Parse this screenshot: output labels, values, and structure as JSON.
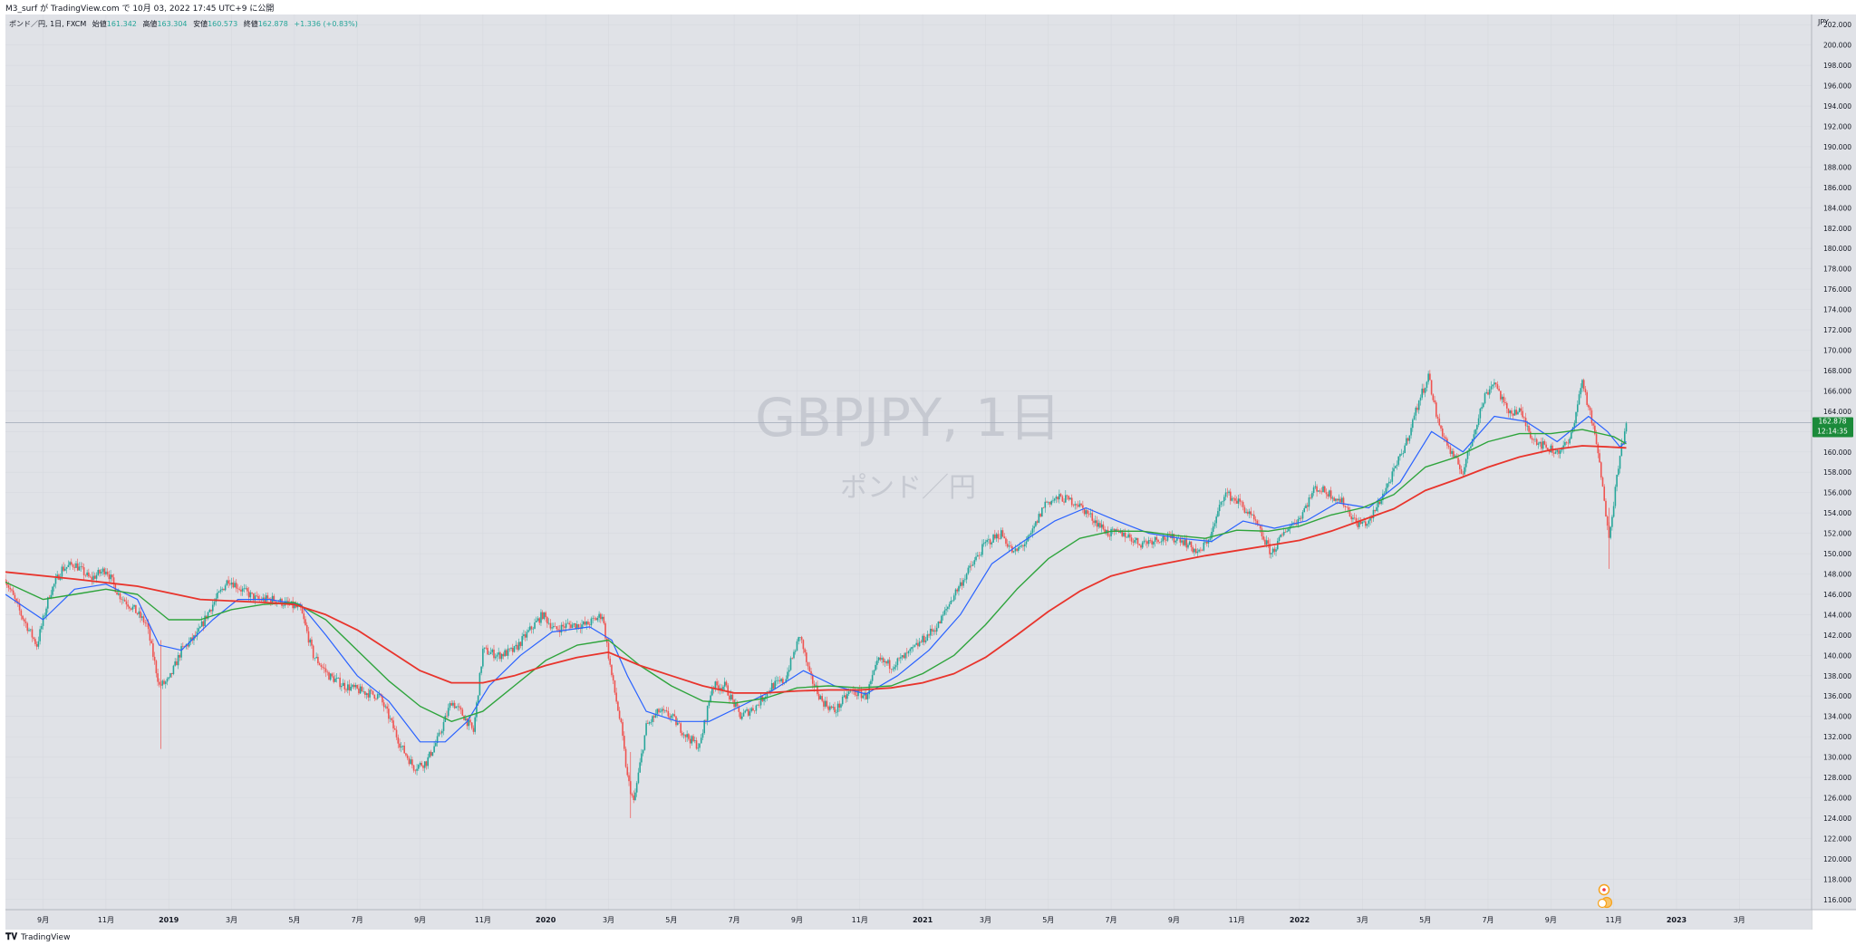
{
  "header": {
    "published": "M3_surf が TradingView.com で 10月 03, 2022 17:45 UTC+9 に公開"
  },
  "legend": {
    "symbol": "ポンド／円, 1日, FXCM",
    "open_label": "始値",
    "open": "161.342",
    "high_label": "高値",
    "high": "163.304",
    "low_label": "安値",
    "low": "160.573",
    "close_label": "終値",
    "close": "162.878",
    "change": "+1.336 (+0.83%)"
  },
  "watermark": {
    "title": "GBPJPY, 1日",
    "subtitle": "ポンド／円"
  },
  "footer": {
    "brand": "TradingView"
  },
  "colors": {
    "background": "#e0e2e7",
    "up": "#26a69a",
    "down": "#ef5350",
    "ma_fast": "#2962ff",
    "ma_mid": "#2ea43c",
    "ma_slow": "#e8342c",
    "price_tag": "#1b8a3a"
  },
  "chart_data": {
    "type": "candlestick",
    "currency": "JPY",
    "y_ticks": [
      "116.000",
      "118.000",
      "120.000",
      "122.000",
      "124.000",
      "126.000",
      "128.000",
      "130.000",
      "132.000",
      "134.000",
      "136.000",
      "138.000",
      "140.000",
      "142.000",
      "144.000",
      "146.000",
      "148.000",
      "150.000",
      "152.000",
      "154.000",
      "156.000",
      "158.000",
      "160.000",
      "162.000",
      "164.000",
      "166.000",
      "168.000",
      "170.000",
      "172.000",
      "174.000",
      "176.000",
      "178.000",
      "180.000",
      "182.000",
      "184.000",
      "186.000",
      "188.000",
      "190.000",
      "192.000",
      "194.000",
      "196.000",
      "198.000",
      "200.000",
      "202.000"
    ],
    "ylim": [
      115,
      203
    ],
    "x_labels": [
      {
        "t": 1,
        "label": "9月"
      },
      {
        "t": 3,
        "label": "11月"
      },
      {
        "t": 5,
        "label": "2019"
      },
      {
        "t": 7,
        "label": "3月"
      },
      {
        "t": 9,
        "label": "5月"
      },
      {
        "t": 11,
        "label": "7月"
      },
      {
        "t": 13,
        "label": "9月"
      },
      {
        "t": 15,
        "label": "11月"
      },
      {
        "t": 17,
        "label": "2020"
      },
      {
        "t": 19,
        "label": "3月"
      },
      {
        "t": 21,
        "label": "5月"
      },
      {
        "t": 23,
        "label": "7月"
      },
      {
        "t": 25,
        "label": "9月"
      },
      {
        "t": 27,
        "label": "11月"
      },
      {
        "t": 29,
        "label": "2021"
      },
      {
        "t": 31,
        "label": "3月"
      },
      {
        "t": 33,
        "label": "5月"
      },
      {
        "t": 35,
        "label": "7月"
      },
      {
        "t": 37,
        "label": "9月"
      },
      {
        "t": 39,
        "label": "11月"
      },
      {
        "t": 41,
        "label": "2022"
      },
      {
        "t": 43,
        "label": "3月"
      },
      {
        "t": 45,
        "label": "5月"
      },
      {
        "t": 47,
        "label": "7月"
      },
      {
        "t": 49,
        "label": "9月"
      },
      {
        "t": 51,
        "label": "11月"
      },
      {
        "t": 53,
        "label": "2023"
      },
      {
        "t": 55,
        "label": "3月"
      }
    ],
    "x_range": [
      -0.2,
      57.3
    ],
    "price_path": [
      [
        -0.2,
        147.5
      ],
      [
        0.3,
        144
      ],
      [
        0.8,
        141
      ],
      [
        1.2,
        146
      ],
      [
        1.6,
        148.5
      ],
      [
        2.0,
        149
      ],
      [
        2.5,
        147.5
      ],
      [
        3.0,
        148.5
      ],
      [
        3.4,
        146
      ],
      [
        3.9,
        144.5
      ],
      [
        4.3,
        143
      ],
      [
        4.7,
        137
      ],
      [
        5.0,
        137.5
      ],
      [
        5.4,
        140.5
      ],
      [
        5.9,
        142
      ],
      [
        6.3,
        144.5
      ],
      [
        6.6,
        146
      ],
      [
        6.9,
        147.5
      ],
      [
        7.3,
        146.5
      ],
      [
        7.8,
        145.5
      ],
      [
        8.3,
        145.5
      ],
      [
        8.8,
        145
      ],
      [
        9.2,
        144.5
      ],
      [
        9.6,
        140
      ],
      [
        10.1,
        138
      ],
      [
        10.6,
        137
      ],
      [
        11.1,
        136.5
      ],
      [
        11.7,
        136
      ],
      [
        12.0,
        134
      ],
      [
        12.4,
        131
      ],
      [
        12.8,
        129
      ],
      [
        13.2,
        129.5
      ],
      [
        13.6,
        132
      ],
      [
        14.0,
        135.5
      ],
      [
        14.4,
        134
      ],
      [
        14.7,
        132.5
      ],
      [
        15.0,
        140.5
      ],
      [
        15.5,
        140
      ],
      [
        16.0,
        140.5
      ],
      [
        16.5,
        142.5
      ],
      [
        16.9,
        144
      ],
      [
        17.3,
        142.5
      ],
      [
        17.7,
        143
      ],
      [
        18.3,
        143
      ],
      [
        18.8,
        144
      ],
      [
        19.1,
        138
      ],
      [
        19.4,
        133
      ],
      [
        19.6,
        128
      ],
      [
        19.8,
        125.5
      ],
      [
        20.2,
        133
      ],
      [
        20.6,
        134.5
      ],
      [
        21.0,
        134
      ],
      [
        21.5,
        132
      ],
      [
        21.9,
        131
      ],
      [
        22.3,
        137
      ],
      [
        22.7,
        137
      ],
      [
        23.2,
        134
      ],
      [
        23.7,
        135
      ],
      [
        24.2,
        137
      ],
      [
        24.6,
        137.5
      ],
      [
        25.1,
        142
      ],
      [
        25.4,
        138
      ],
      [
        25.8,
        135.5
      ],
      [
        26.2,
        134.5
      ],
      [
        26.7,
        136.5
      ],
      [
        27.2,
        136
      ],
      [
        27.6,
        139.5
      ],
      [
        28.0,
        139
      ],
      [
        28.5,
        140
      ],
      [
        29.0,
        141.5
      ],
      [
        29.5,
        143
      ],
      [
        30.0,
        146
      ],
      [
        30.5,
        148.5
      ],
      [
        31.0,
        151
      ],
      [
        31.5,
        152
      ],
      [
        31.9,
        150
      ],
      [
        32.4,
        151.5
      ],
      [
        32.9,
        155
      ],
      [
        33.4,
        155.5
      ],
      [
        33.9,
        155
      ],
      [
        34.4,
        153.5
      ],
      [
        34.9,
        152
      ],
      [
        35.4,
        152
      ],
      [
        35.9,
        151
      ],
      [
        36.5,
        151.5
      ],
      [
        37.2,
        151.5
      ],
      [
        37.8,
        150
      ],
      [
        38.2,
        152
      ],
      [
        38.6,
        156
      ],
      [
        39.1,
        155
      ],
      [
        39.6,
        153
      ],
      [
        40.1,
        150
      ],
      [
        40.6,
        152.5
      ],
      [
        41.0,
        153.5
      ],
      [
        41.5,
        156.5
      ],
      [
        41.9,
        156
      ],
      [
        42.4,
        155
      ],
      [
        42.8,
        153
      ],
      [
        43.2,
        153
      ],
      [
        43.6,
        155.5
      ],
      [
        44.0,
        158
      ],
      [
        44.4,
        161
      ],
      [
        44.8,
        165
      ],
      [
        45.1,
        167.5
      ],
      [
        45.4,
        163
      ],
      [
        45.8,
        160
      ],
      [
        46.2,
        158
      ],
      [
        46.6,
        162.5
      ],
      [
        46.9,
        165.5
      ],
      [
        47.2,
        167
      ],
      [
        47.6,
        164
      ],
      [
        48.0,
        164
      ],
      [
        48.4,
        161.5
      ],
      [
        48.8,
        160.5
      ],
      [
        49.2,
        160
      ],
      [
        49.6,
        161
      ],
      [
        50.0,
        167
      ],
      [
        50.3,
        163
      ],
      [
        50.5,
        160
      ],
      [
        50.7,
        155
      ],
      [
        50.85,
        152
      ],
      [
        51.0,
        155
      ],
      [
        51.2,
        160
      ],
      [
        51.4,
        162.5
      ]
    ],
    "moving_averages": [
      {
        "key": "fast",
        "points": [
          [
            -0.2,
            146
          ],
          [
            1,
            143.5
          ],
          [
            2,
            146.5
          ],
          [
            3,
            147
          ],
          [
            4,
            145.5
          ],
          [
            4.7,
            141
          ],
          [
            5.4,
            140.5
          ],
          [
            6.4,
            143.5
          ],
          [
            7.2,
            145.5
          ],
          [
            8.2,
            145.5
          ],
          [
            9.2,
            145
          ],
          [
            10,
            142
          ],
          [
            11,
            138
          ],
          [
            12,
            135.5
          ],
          [
            13,
            131.5
          ],
          [
            13.8,
            131.5
          ],
          [
            14.5,
            133.5
          ],
          [
            15.2,
            137
          ],
          [
            16.2,
            140
          ],
          [
            17.2,
            142.3
          ],
          [
            18.4,
            142.8
          ],
          [
            19.1,
            141.5
          ],
          [
            19.6,
            138
          ],
          [
            20.2,
            134.5
          ],
          [
            21.2,
            133.5
          ],
          [
            22.2,
            133.5
          ],
          [
            23.2,
            135
          ],
          [
            24.2,
            136.5
          ],
          [
            25.2,
            138.5
          ],
          [
            26.2,
            137
          ],
          [
            27.2,
            136.2
          ],
          [
            28.2,
            138
          ],
          [
            29.2,
            140.5
          ],
          [
            30.2,
            144
          ],
          [
            31.2,
            149
          ],
          [
            32.2,
            151.2
          ],
          [
            33.2,
            153.2
          ],
          [
            34.2,
            154.5
          ],
          [
            35.2,
            153.2
          ],
          [
            36.2,
            152
          ],
          [
            37.2,
            151.5
          ],
          [
            38.2,
            151.2
          ],
          [
            39.2,
            153.2
          ],
          [
            40.2,
            152.5
          ],
          [
            41.2,
            153.2
          ],
          [
            42.2,
            155
          ],
          [
            43.2,
            154.5
          ],
          [
            44.2,
            157
          ],
          [
            45.2,
            162
          ],
          [
            46.2,
            160
          ],
          [
            47.2,
            163.5
          ],
          [
            48.2,
            163
          ],
          [
            49.2,
            161
          ],
          [
            50.2,
            163.5
          ],
          [
            50.8,
            162
          ],
          [
            51.2,
            160.5
          ],
          [
            51.4,
            161
          ]
        ]
      },
      {
        "key": "mid",
        "points": [
          [
            -0.2,
            147.2
          ],
          [
            1,
            145.5
          ],
          [
            2,
            146
          ],
          [
            3,
            146.5
          ],
          [
            4,
            146
          ],
          [
            5,
            143.5
          ],
          [
            6,
            143.5
          ],
          [
            7,
            144.5
          ],
          [
            8,
            145
          ],
          [
            9,
            145.2
          ],
          [
            10,
            143.5
          ],
          [
            11,
            140.5
          ],
          [
            12,
            137.5
          ],
          [
            13,
            135
          ],
          [
            14,
            133.5
          ],
          [
            15,
            134.5
          ],
          [
            16,
            137
          ],
          [
            17,
            139.5
          ],
          [
            18,
            141
          ],
          [
            19,
            141.5
          ],
          [
            20,
            139
          ],
          [
            21,
            137
          ],
          [
            22,
            135.5
          ],
          [
            23,
            135.3
          ],
          [
            24,
            135.8
          ],
          [
            25,
            136.8
          ],
          [
            26,
            137
          ],
          [
            27,
            136.8
          ],
          [
            28,
            137
          ],
          [
            29,
            138.2
          ],
          [
            30,
            140
          ],
          [
            31,
            143
          ],
          [
            32,
            146.5
          ],
          [
            33,
            149.5
          ],
          [
            34,
            151.5
          ],
          [
            35,
            152.2
          ],
          [
            36,
            152.2
          ],
          [
            37,
            151.8
          ],
          [
            38,
            151.5
          ],
          [
            39,
            152.3
          ],
          [
            40,
            152.2
          ],
          [
            41,
            152.7
          ],
          [
            42,
            153.8
          ],
          [
            43,
            154.5
          ],
          [
            44,
            155.8
          ],
          [
            45,
            158.5
          ],
          [
            46,
            159.5
          ],
          [
            47,
            161
          ],
          [
            48,
            161.8
          ],
          [
            49,
            161.8
          ],
          [
            50,
            162.2
          ],
          [
            51,
            161.5
          ],
          [
            51.4,
            160.8
          ]
        ]
      },
      {
        "key": "slow",
        "points": [
          [
            -0.2,
            148.2
          ],
          [
            2,
            147.5
          ],
          [
            4,
            146.8
          ],
          [
            6,
            145.5
          ],
          [
            8,
            145.2
          ],
          [
            9,
            145
          ],
          [
            10,
            144
          ],
          [
            11,
            142.5
          ],
          [
            12,
            140.5
          ],
          [
            13,
            138.5
          ],
          [
            14,
            137.3
          ],
          [
            15,
            137.3
          ],
          [
            16,
            138
          ],
          [
            17,
            139
          ],
          [
            18,
            139.8
          ],
          [
            19,
            140.3
          ],
          [
            20,
            139
          ],
          [
            21,
            138
          ],
          [
            22,
            137
          ],
          [
            23,
            136.3
          ],
          [
            24,
            136.3
          ],
          [
            25,
            136.5
          ],
          [
            26,
            136.6
          ],
          [
            27,
            136.6
          ],
          [
            28,
            136.8
          ],
          [
            29,
            137.3
          ],
          [
            30,
            138.2
          ],
          [
            31,
            139.8
          ],
          [
            32,
            142
          ],
          [
            33,
            144.3
          ],
          [
            34,
            146.3
          ],
          [
            35,
            147.8
          ],
          [
            36,
            148.6
          ],
          [
            37,
            149.2
          ],
          [
            38,
            149.8
          ],
          [
            39,
            150.3
          ],
          [
            40,
            150.8
          ],
          [
            41,
            151.3
          ],
          [
            42,
            152.2
          ],
          [
            43,
            153.3
          ],
          [
            44,
            154.4
          ],
          [
            45,
            156.2
          ],
          [
            46,
            157.3
          ],
          [
            47,
            158.5
          ],
          [
            48,
            159.5
          ],
          [
            49,
            160.2
          ],
          [
            50,
            160.6
          ],
          [
            50.8,
            160.5
          ],
          [
            51.4,
            160.4
          ]
        ]
      }
    ],
    "last_price": {
      "label": "162.878",
      "countdown": "12:14:35",
      "value": 162.878
    }
  }
}
